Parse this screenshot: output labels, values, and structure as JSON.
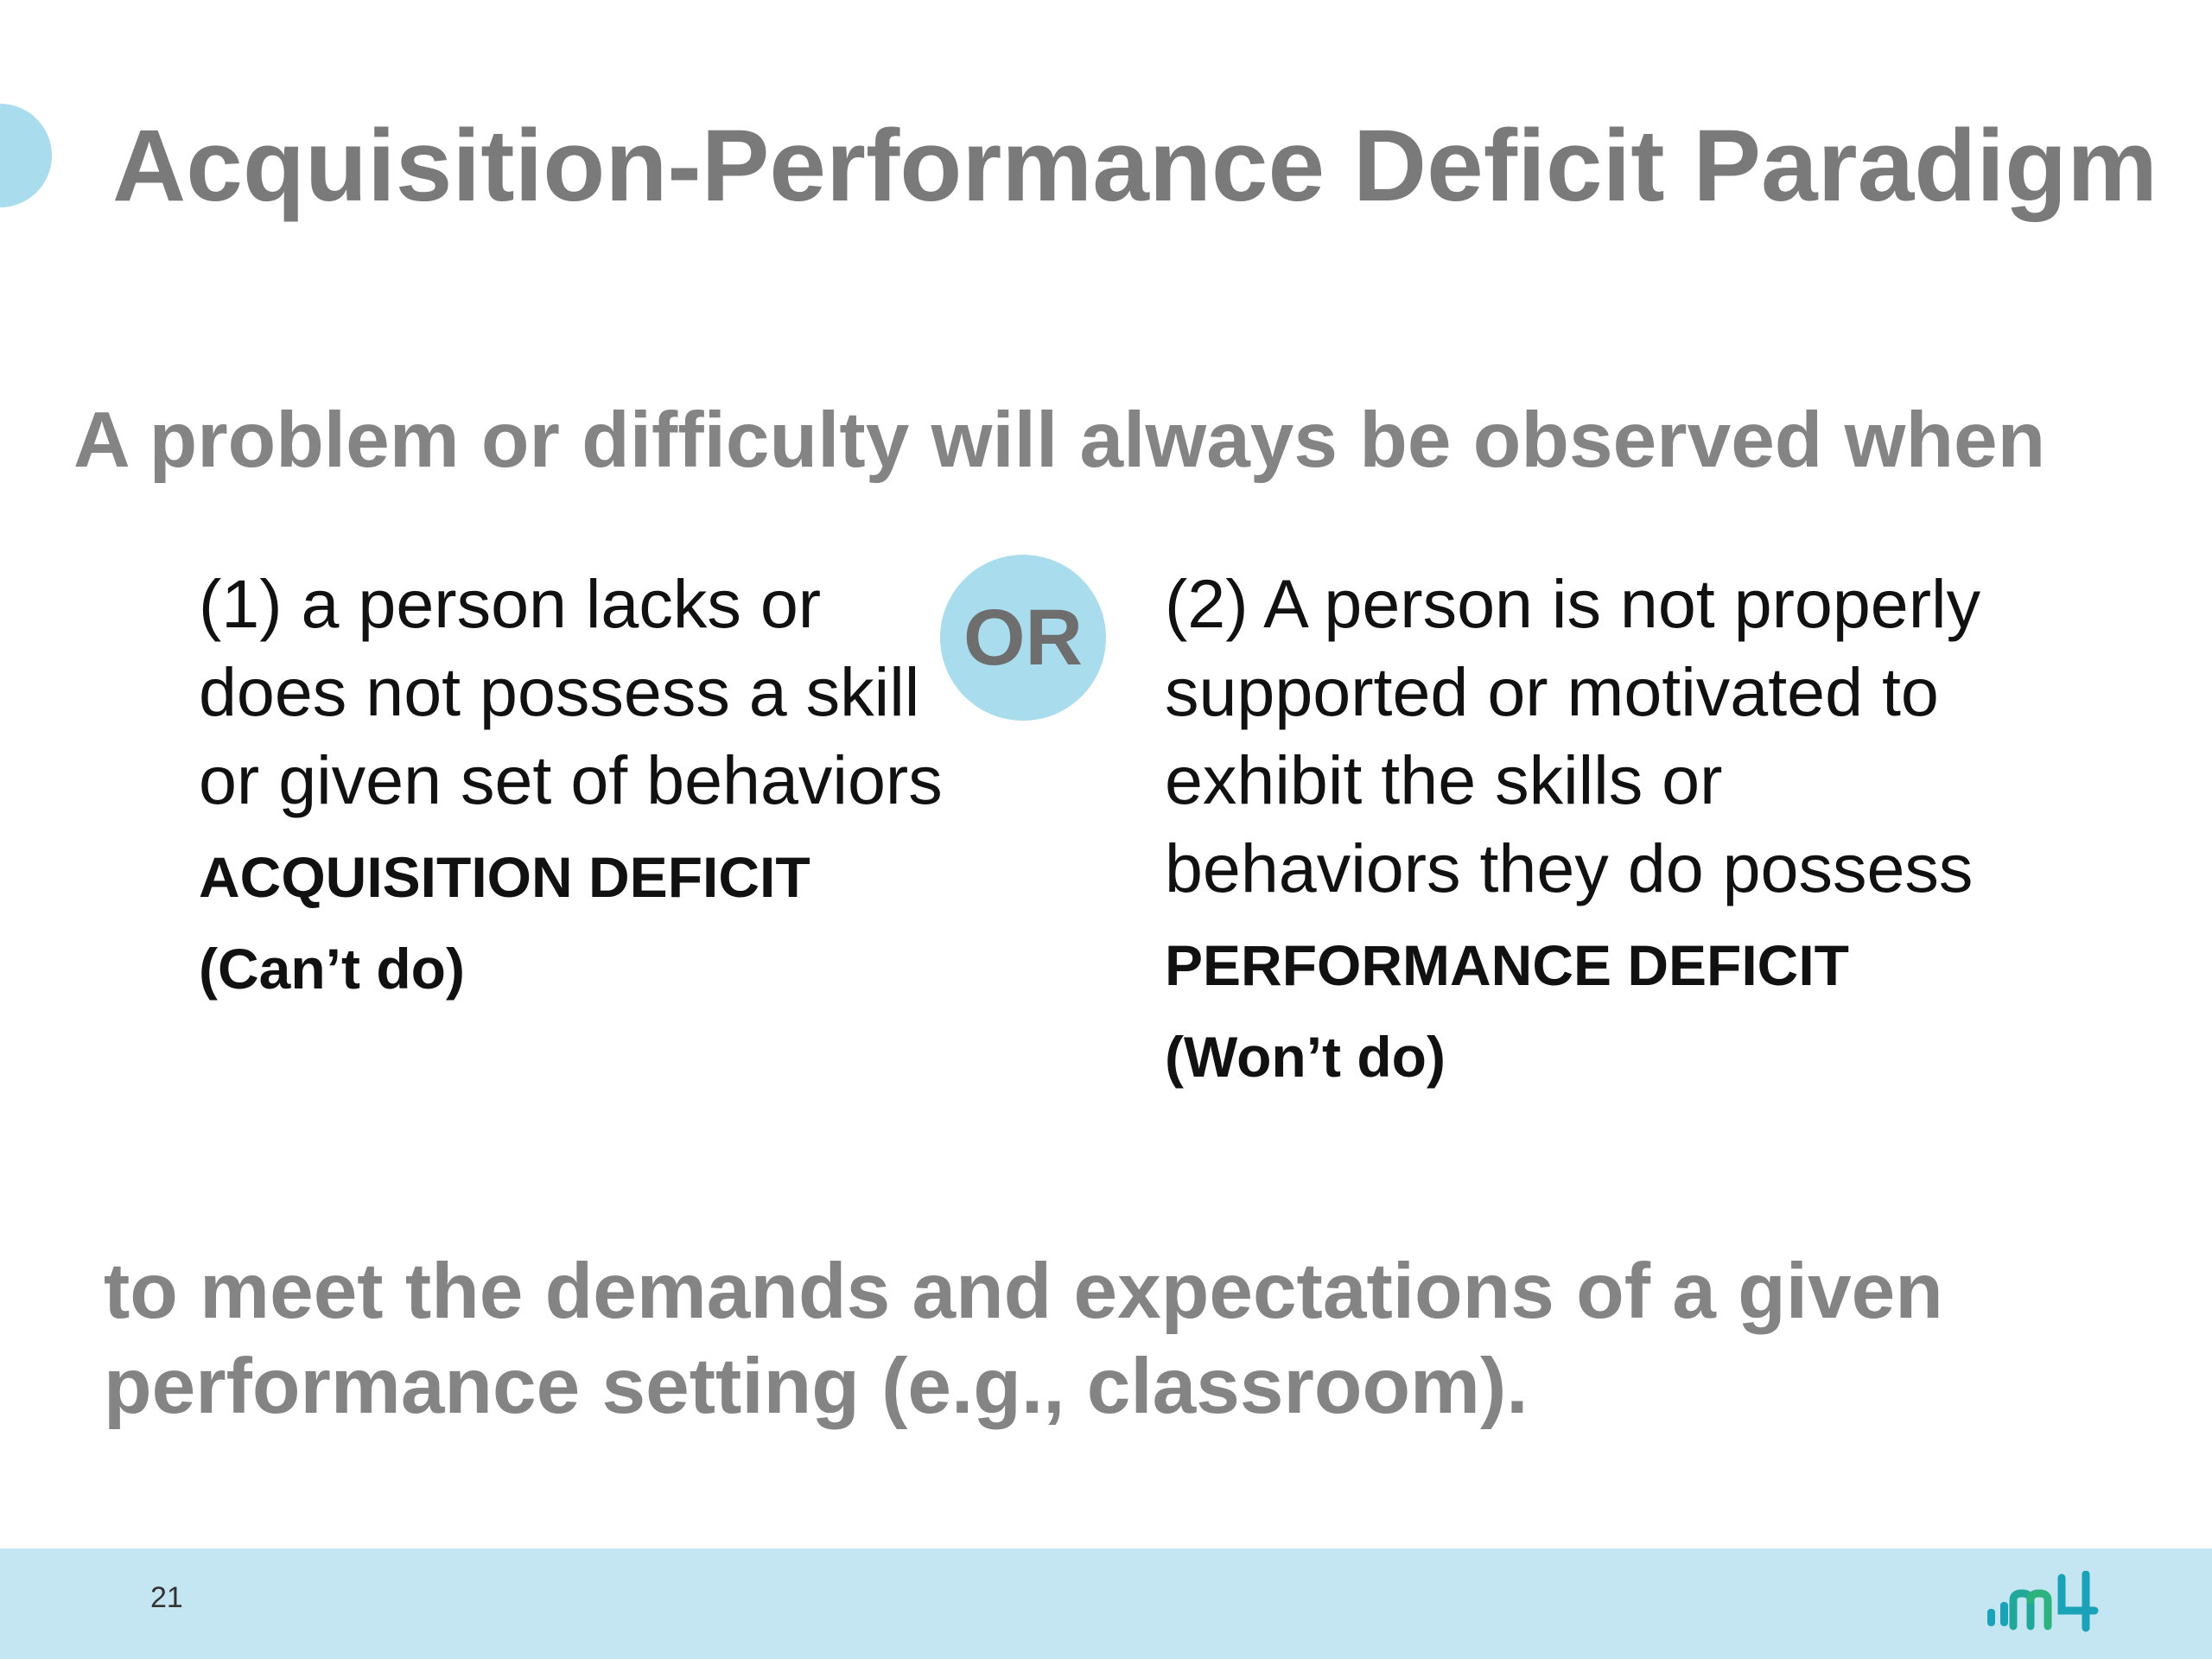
{
  "slide": {
    "title": "Acquisition-Performance Deficit Paradigm",
    "intro": "A problem or difficulty will always be observed when",
    "left": {
      "text": "(1) a person lacks or does not possess a skill or given set of behaviors",
      "label": "ACQUISITION DEFICIT",
      "sublabel": "(Can’t do)"
    },
    "or_label": "OR",
    "right": {
      "text": "(2) A person is not properly supported or motivated to exhibit the skills or behaviors they do possess",
      "label": "PERFORMANCE DEFICIT",
      "sublabel": "(Won’t do)"
    },
    "outro": "to meet the demands and expectations of a given performance setting (e.g., classroom)."
  },
  "footer": {
    "page_number": "21",
    "logo_icon": "m4-logo-icon"
  },
  "colors": {
    "accent": "#a9dcec",
    "footer_band": "#c4e6f3",
    "heading_gray": "#7a7a7a",
    "logo_teal": "#1aa3b8",
    "logo_green": "#2db37d"
  }
}
